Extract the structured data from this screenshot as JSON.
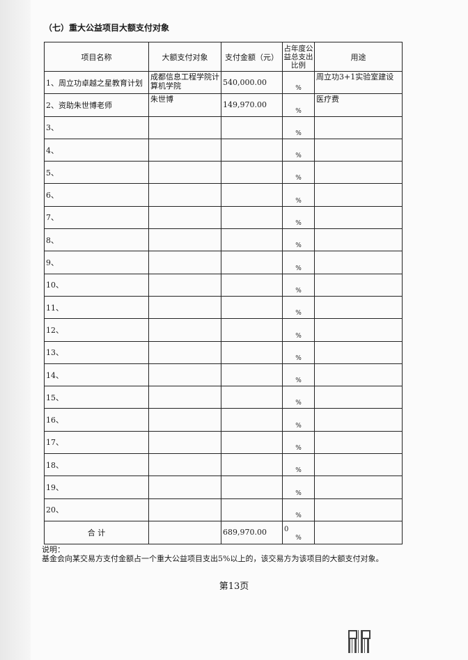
{
  "title": "（七）重大公益项目大额支付对象",
  "table": {
    "headers": [
      "项目名称",
      "大额支付对象",
      "支付金额（元）",
      "占年度公益总支出比例",
      "用途"
    ],
    "rows": [
      {
        "name": "1、周立功卓越之星教育计划",
        "payee": "成都信息工程学院计算机学院",
        "amount": "540,000.00",
        "ratio": "%",
        "use": "周立功3+1实验室建设"
      },
      {
        "name": "2、资助朱世博老师",
        "payee": "朱世博",
        "amount": "149,970.00",
        "ratio": "%",
        "use": "医疗费"
      },
      {
        "name": "3、",
        "payee": "",
        "amount": "",
        "ratio": "%",
        "use": ""
      },
      {
        "name": "4、",
        "payee": "",
        "amount": "",
        "ratio": "%",
        "use": ""
      },
      {
        "name": "5、",
        "payee": "",
        "amount": "",
        "ratio": "%",
        "use": ""
      },
      {
        "name": "6、",
        "payee": "",
        "amount": "",
        "ratio": "%",
        "use": ""
      },
      {
        "name": "7、",
        "payee": "",
        "amount": "",
        "ratio": "%",
        "use": ""
      },
      {
        "name": "8、",
        "payee": "",
        "amount": "",
        "ratio": "%",
        "use": ""
      },
      {
        "name": "9、",
        "payee": "",
        "amount": "",
        "ratio": "%",
        "use": ""
      },
      {
        "name": "10、",
        "payee": "",
        "amount": "",
        "ratio": "%",
        "use": ""
      },
      {
        "name": "11、",
        "payee": "",
        "amount": "",
        "ratio": "%",
        "use": ""
      },
      {
        "name": "12、",
        "payee": "",
        "amount": "",
        "ratio": "%",
        "use": ""
      },
      {
        "name": "13、",
        "payee": "",
        "amount": "",
        "ratio": "%",
        "use": ""
      },
      {
        "name": "14、",
        "payee": "",
        "amount": "",
        "ratio": "%",
        "use": ""
      },
      {
        "name": "15、",
        "payee": "",
        "amount": "",
        "ratio": "%",
        "use": ""
      },
      {
        "name": "16、",
        "payee": "",
        "amount": "",
        "ratio": "%",
        "use": ""
      },
      {
        "name": "17、",
        "payee": "",
        "amount": "",
        "ratio": "%",
        "use": ""
      },
      {
        "name": "18、",
        "payee": "",
        "amount": "",
        "ratio": "%",
        "use": ""
      },
      {
        "name": "19、",
        "payee": "",
        "amount": "",
        "ratio": "%",
        "use": ""
      },
      {
        "name": "20、",
        "payee": "",
        "amount": "",
        "ratio": "%",
        "use": ""
      }
    ],
    "total": {
      "label": "合  计",
      "amount": "689,970.00",
      "ratio_value": "0",
      "ratio_unit": "%"
    }
  },
  "note": {
    "label": "说明：",
    "text": "基金会向某交易方支付金额占一个重大公益项目支出5%以上的，该交易方为该项目的大额支付对象。"
  },
  "page_number": "第13页"
}
